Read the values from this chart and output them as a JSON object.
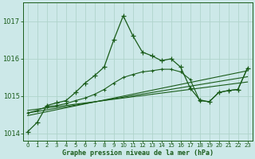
{
  "background_color": "#cce8e8",
  "grid_color": "#b0d4cc",
  "line_color": "#1a5c1a",
  "title": "Graphe pression niveau de la mer (hPa)",
  "xlim": [
    -0.5,
    23.5
  ],
  "ylim": [
    1013.8,
    1017.5
  ],
  "yticks": [
    1014,
    1015,
    1016,
    1017
  ],
  "xticks": [
    0,
    1,
    2,
    3,
    4,
    5,
    6,
    7,
    8,
    9,
    10,
    11,
    12,
    13,
    14,
    15,
    16,
    17,
    18,
    19,
    20,
    21,
    22,
    23
  ],
  "series1_x": [
    0,
    1,
    2,
    3,
    4,
    5,
    6,
    7,
    8,
    9,
    10,
    11,
    12,
    13,
    14,
    15,
    16,
    17,
    18,
    19,
    20,
    21,
    22,
    23
  ],
  "series1_y": [
    1014.05,
    1014.3,
    1014.75,
    1014.82,
    1014.88,
    1015.1,
    1015.35,
    1015.55,
    1015.78,
    1016.5,
    1017.15,
    1016.62,
    1016.18,
    1016.08,
    1015.95,
    1016.0,
    1015.78,
    1015.22,
    1014.9,
    1014.85,
    1015.1,
    1015.15,
    1015.18,
    1015.75
  ],
  "series2_x": [
    0,
    1,
    2,
    3,
    4,
    5,
    6,
    7,
    8,
    9,
    10,
    11,
    12,
    13,
    14,
    15,
    16,
    17,
    18,
    19,
    20,
    21,
    22,
    23
  ],
  "series2_y": [
    1014.55,
    1014.62,
    1014.72,
    1014.75,
    1014.8,
    1014.88,
    1014.95,
    1015.05,
    1015.18,
    1015.35,
    1015.5,
    1015.58,
    1015.65,
    1015.68,
    1015.72,
    1015.72,
    1015.65,
    1015.45,
    1014.88,
    1014.85,
    1015.1,
    1015.15,
    1015.18,
    1015.75
  ],
  "line3_x": [
    0,
    23
  ],
  "line3_y": [
    1014.48,
    1015.68
  ],
  "line4_x": [
    0,
    23
  ],
  "line4_y": [
    1014.55,
    1015.52
  ],
  "line5_x": [
    0,
    23
  ],
  "line5_y": [
    1014.62,
    1015.38
  ]
}
